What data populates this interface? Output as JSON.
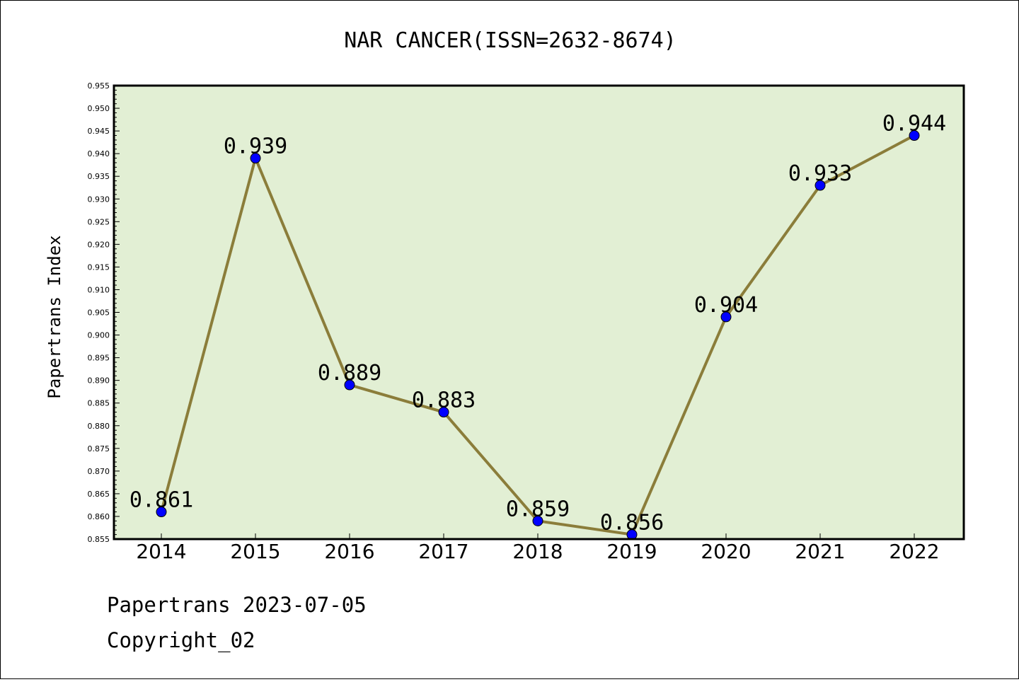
{
  "chart_data": {
    "type": "line",
    "title": "NAR CANCER(ISSN=2632-8674)",
    "xlabel": "",
    "ylabel": "Papertrans Index",
    "categories": [
      "2014",
      "2015",
      "2016",
      "2017",
      "2018",
      "2019",
      "2020",
      "2021",
      "2022"
    ],
    "values": [
      0.861,
      0.939,
      0.889,
      0.883,
      0.859,
      0.856,
      0.904,
      0.933,
      0.944
    ],
    "data_labels": [
      "0.861",
      "0.939",
      "0.889",
      "0.883",
      "0.859",
      "0.856",
      "0.904",
      "0.933",
      "0.944"
    ],
    "ylim": [
      0.855,
      0.955
    ],
    "yticks": [
      "0.855",
      "0.860",
      "0.865",
      "0.870",
      "0.875",
      "0.880",
      "0.885",
      "0.890",
      "0.895",
      "0.900",
      "0.905",
      "0.910",
      "0.915",
      "0.920",
      "0.925",
      "0.930",
      "0.935",
      "0.940",
      "0.945",
      "0.950",
      "0.955"
    ],
    "grid": false,
    "colors": {
      "plot_background": "#e2efd4",
      "line": "#8b7d3a",
      "marker": "#0000ff"
    }
  },
  "footer": {
    "line1": "Papertrans 2023-07-05",
    "line2": "Copyright_02"
  }
}
